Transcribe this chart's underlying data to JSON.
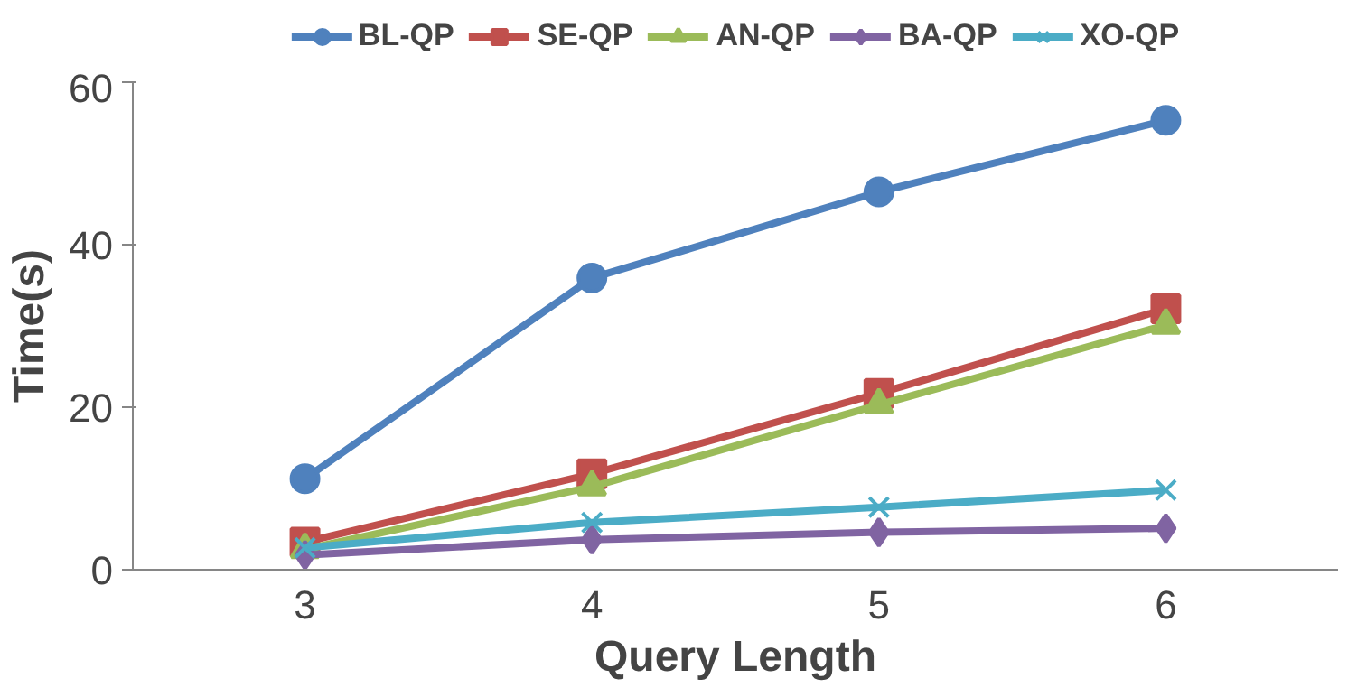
{
  "chart_data": {
    "type": "line",
    "xlabel": "Query Length",
    "ylabel": "Time(s)",
    "categories": [
      "3",
      "4",
      "5",
      "6"
    ],
    "ylim": [
      0,
      60
    ],
    "yticks": [
      0,
      20,
      40,
      60
    ],
    "grid": false,
    "legend": "top",
    "line_style": "solid",
    "series": [
      {
        "name": "BL-QP",
        "color": "#4f81bd",
        "marker": "circle",
        "values": [
          11.2,
          35.9,
          46.5,
          55.3
        ]
      },
      {
        "name": "SE-QP",
        "color": "#c0504d",
        "marker": "square",
        "values": [
          3.4,
          11.8,
          21.7,
          32.1
        ]
      },
      {
        "name": "AN-QP",
        "color": "#9bbb59",
        "marker": "triangle",
        "values": [
          2.5,
          10.2,
          20.3,
          30.1
        ]
      },
      {
        "name": "BA-QP",
        "color": "#8064a2",
        "marker": "diamond",
        "values": [
          1.8,
          3.7,
          4.6,
          5.1
        ]
      },
      {
        "name": "XO-QP",
        "color": "#4bacc6",
        "marker": "cross",
        "values": [
          2.7,
          5.8,
          7.7,
          9.8
        ]
      }
    ]
  }
}
